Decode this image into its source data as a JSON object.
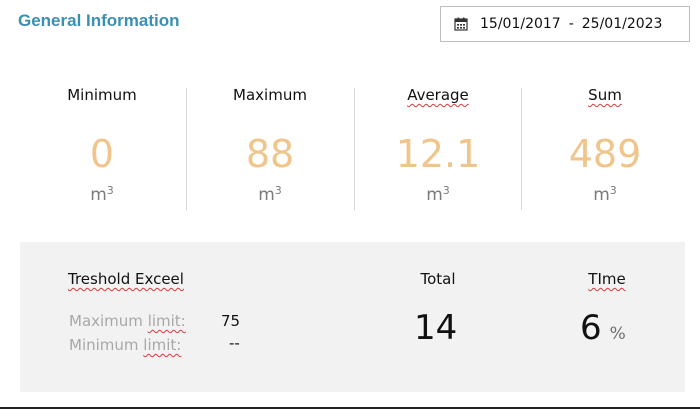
{
  "header": {
    "title": "General Information",
    "date_start": "15/01/2017",
    "date_sep": "-",
    "date_end": "25/01/2023",
    "icon": "calendar-icon"
  },
  "stats": [
    {
      "label": "Minimum",
      "value": "0",
      "unit": "m",
      "unit_sup": "3"
    },
    {
      "label": "Maximum",
      "value": "88",
      "unit": "m",
      "unit_sup": "3"
    },
    {
      "label": "Average",
      "value": "12.1",
      "unit": "m",
      "unit_sup": "3"
    },
    {
      "label": "Sum",
      "value": "489",
      "unit": "m",
      "unit_sup": "3"
    }
  ],
  "threshold": {
    "title": "Treshold Exceel",
    "max_limit_label": "Maximum limit:",
    "max_limit_value": "75",
    "min_limit_label": "Minimum limit:",
    "min_limit_value": "--",
    "total_label": "Total",
    "total_value": "14",
    "time_label": "TIme",
    "time_value": "6",
    "time_unit": "%"
  },
  "colors": {
    "title": "#3b8fb3",
    "stat_value": "#f0c58c",
    "panel_bg": "#f2f2f2"
  }
}
